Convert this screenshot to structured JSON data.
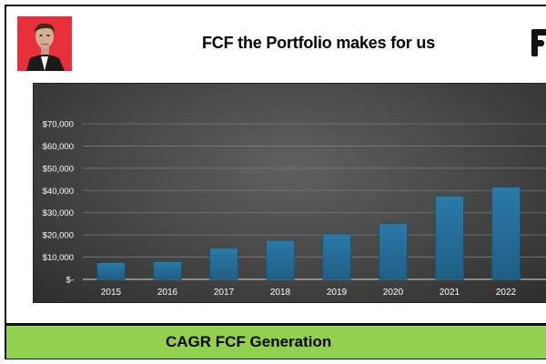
{
  "header": {
    "title": "FCF the Portfolio makes for us"
  },
  "footer": {
    "band_title": "CAGR FCF Generation"
  },
  "colors": {
    "bar": "#1f5f85",
    "bar_highlight": "#2a7aa8",
    "band": "#92d050",
    "avatar_bg": "#e8303a"
  },
  "chart_data": {
    "type": "bar",
    "categories": [
      "2015",
      "2016",
      "2017",
      "2018",
      "2019",
      "2020",
      "2021",
      "2022"
    ],
    "values": [
      7500,
      8000,
      14000,
      17500,
      20500,
      25000,
      37500,
      41500
    ],
    "ylim": [
      0,
      70000
    ],
    "yticks": [
      0,
      10000,
      20000,
      30000,
      40000,
      50000,
      60000,
      70000
    ],
    "ytick_labels": [
      "$-",
      "$10,000",
      "$20,000",
      "$30,000",
      "$40,000",
      "$50,000",
      "$60,000",
      "$70,000"
    ],
    "grid": true,
    "legend": "none"
  }
}
